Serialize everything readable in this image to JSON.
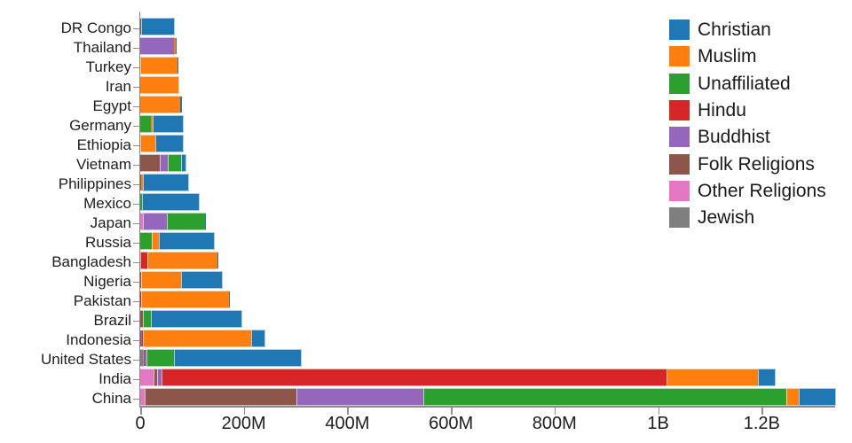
{
  "chart_data": {
    "type": "bar",
    "orientation": "horizontal",
    "stacked": true,
    "title": "",
    "xlabel": "",
    "ylabel": "",
    "unit": "people (millions)",
    "grid": false,
    "legend_position": "top-right",
    "xlim": [
      0,
      1341.78
    ],
    "x_ticks": [
      {
        "value": 0,
        "label": "0"
      },
      {
        "value": 200,
        "label": "200M"
      },
      {
        "value": 400,
        "label": "400M"
      },
      {
        "value": 600,
        "label": "600M"
      },
      {
        "value": 800,
        "label": "800M"
      },
      {
        "value": 1000,
        "label": "1B"
      },
      {
        "value": 1200,
        "label": "1.2B"
      }
    ],
    "categories": [
      "DR Congo",
      "Thailand",
      "Turkey",
      "Iran",
      "Egypt",
      "Germany",
      "Ethiopia",
      "Vietnam",
      "Philippines",
      "Mexico",
      "Japan",
      "Russia",
      "Bangladesh",
      "Nigeria",
      "Pakistan",
      "Brazil",
      "Indonesia",
      "United States",
      "India",
      "China"
    ],
    "stack_order_left_to_right": [
      "Jewish",
      "Other Religions",
      "Folk Religions",
      "Buddhist",
      "Hindu",
      "Unaffiliated",
      "Muslim",
      "Christian"
    ],
    "series": [
      {
        "name": "Christian",
        "color": "#1f77b4",
        "values": [
          63.21,
          0.62,
          0.29,
          0.15,
          4.13,
          56.54,
          52.07,
          7.2,
          86.37,
          107.8,
          2.02,
          104.78,
          0.3,
          78.05,
          2.78,
          173.3,
          23.66,
          243.06,
          31.13,
          68.41
        ]
      },
      {
        "name": "Muslim",
        "color": "#ff7f0e",
        "values": [
          0.99,
          3.8,
          71.33,
          73.6,
          76.99,
          4.76,
          28.7,
          0.16,
          5.13,
          0.01,
          0.13,
          14.3,
          133.52,
          77.3,
          167.41,
          0.04,
          209.12,
          2.77,
          176.2,
          24.69
        ]
      },
      {
        "name": "Unaffiliated",
        "color": "#2ca02c",
        "values": [
          0.26,
          0.21,
          0.87,
          0.07,
          0.02,
          20.35,
          0.05,
          26.0,
          0.09,
          5.3,
          72.12,
          23.18,
          0.15,
          0.63,
          0.02,
          15.4,
          0.24,
          50.98,
          0.87,
          700.68
        ]
      },
      {
        "name": "Hindu",
        "color": "#d62728",
        "values": [
          0,
          0.01,
          0,
          0.01,
          0,
          0.08,
          0,
          0.04,
          0.01,
          0,
          0.03,
          0.03,
          13.52,
          0.02,
          3.3,
          0,
          4.05,
          1.86,
          973.75,
          0.03
        ]
      },
      {
        "name": "Buddhist",
        "color": "#9467bd",
        "values": [
          0,
          64.42,
          0.04,
          0,
          0,
          0.25,
          0,
          14.41,
          0.05,
          0.01,
          45.82,
          0.14,
          0.74,
          0,
          0.02,
          0.19,
          1.72,
          3.72,
          9.25,
          244.08
        ]
      },
      {
        "name": "Folk Religions",
        "color": "#8c564b",
        "values": [
          1.19,
          0.07,
          0.03,
          0.02,
          0.01,
          0.08,
          2.16,
          39.75,
          1.4,
          0.11,
          0.51,
          0.29,
          0.59,
          2.22,
          0.02,
          5.46,
          0.72,
          0.62,
          6.12,
          294.32
        ]
      },
      {
        "name": "Other Religions",
        "color": "#e377c2",
        "values": [
          0.13,
          0.01,
          0.22,
          0.22,
          0.01,
          0.08,
          0.04,
          0.4,
          0.19,
          0.06,
          5.95,
          0.03,
          0.01,
          0.16,
          0.02,
          0.58,
          0.34,
          1.86,
          27.56,
          9.57
        ]
      },
      {
        "name": "Jewish",
        "color": "#7f7f7f",
        "values": [
          0,
          0,
          0.02,
          0.01,
          0,
          0.25,
          0,
          0,
          0,
          0.05,
          0.01,
          0.29,
          0,
          0,
          0,
          0.11,
          0,
          5.69,
          0.01,
          0
        ]
      }
    ]
  }
}
